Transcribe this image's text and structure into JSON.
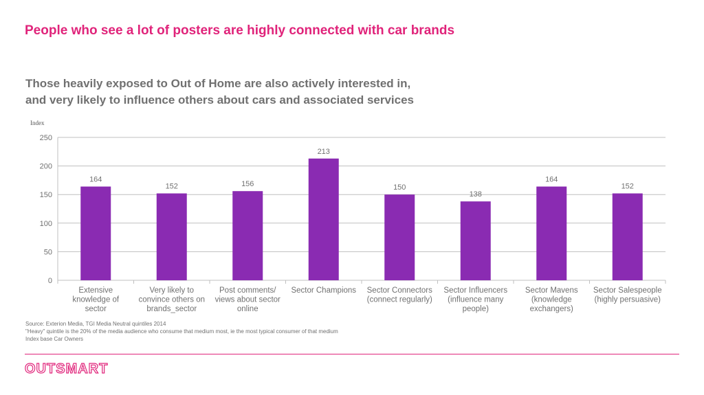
{
  "title": "People who see a lot of posters are highly connected with car brands",
  "subtitle_lines": [
    "Those heavily exposed to Out of Home are also actively interested in,",
    "and very likely to influence others about cars and associated services"
  ],
  "chart_data": {
    "type": "bar",
    "ylabel": "Index",
    "ylim": [
      0,
      250
    ],
    "yticks": [
      0,
      50,
      100,
      150,
      200,
      250
    ],
    "grid": true,
    "bar_color": "#8a2bb2",
    "categories": [
      [
        "Extensive",
        "knowledge of",
        "sector"
      ],
      [
        "Very likely to",
        "convince others on",
        "brands_sector"
      ],
      [
        "Post comments/",
        "views about sector",
        "online"
      ],
      [
        "Sector Champions"
      ],
      [
        "Sector Connectors",
        "(connect regularly)"
      ],
      [
        "Sector Influencers",
        "(influence many",
        "people)"
      ],
      [
        "Sector Mavens",
        "(knowledge",
        "exchangers)"
      ],
      [
        "Sector Salespeople",
        "(highly persuasive)"
      ]
    ],
    "values": [
      164,
      152,
      156,
      213,
      150,
      138,
      164,
      152
    ]
  },
  "notes": [
    "Source: Exterion Media, TGI Media Neutral quintiles 2014",
    "\"Heavy\" quintile is the 20% of the media audience who consume that medium most, ie the most typical consumer of that medium",
    "Index base Car Owners"
  ],
  "logo_text": "OUTSMART",
  "colors": {
    "accent": "#e0237a",
    "text_gray": "#707070"
  }
}
